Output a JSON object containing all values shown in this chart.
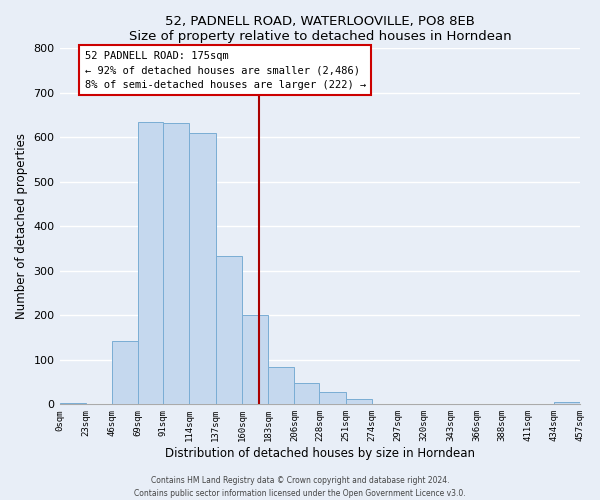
{
  "title": "52, PADNELL ROAD, WATERLOOVILLE, PO8 8EB",
  "subtitle": "Size of property relative to detached houses in Horndean",
  "xlabel": "Distribution of detached houses by size in Horndean",
  "ylabel": "Number of detached properties",
  "bar_color": "#c5d8ee",
  "bar_edge_color": "#7aadd4",
  "background_color": "#e8eef7",
  "bin_edges": [
    0,
    23,
    46,
    69,
    91,
    114,
    137,
    160,
    183,
    206,
    228,
    251,
    274,
    297,
    320,
    343,
    366,
    388,
    411,
    434,
    457
  ],
  "bin_labels": [
    "0sqm",
    "23sqm",
    "46sqm",
    "69sqm",
    "91sqm",
    "114sqm",
    "137sqm",
    "160sqm",
    "183sqm",
    "206sqm",
    "228sqm",
    "251sqm",
    "274sqm",
    "297sqm",
    "320sqm",
    "343sqm",
    "366sqm",
    "388sqm",
    "411sqm",
    "434sqm",
    "457sqm"
  ],
  "counts": [
    2,
    0,
    143,
    635,
    633,
    609,
    334,
    200,
    83,
    47,
    27,
    12,
    0,
    0,
    0,
    0,
    0,
    0,
    0,
    5
  ],
  "ylim": [
    0,
    800
  ],
  "yticks": [
    0,
    100,
    200,
    300,
    400,
    500,
    600,
    700,
    800
  ],
  "property_value": 175,
  "vline_color": "#aa0000",
  "annotation_title": "52 PADNELL ROAD: 175sqm",
  "annotation_line1": "← 92% of detached houses are smaller (2,486)",
  "annotation_line2": "8% of semi-detached houses are larger (222) →",
  "annotation_box_color": "#ffffff",
  "annotation_box_edge_color": "#cc0000",
  "footer_line1": "Contains HM Land Registry data © Crown copyright and database right 2024.",
  "footer_line2": "Contains public sector information licensed under the Open Government Licence v3.0."
}
